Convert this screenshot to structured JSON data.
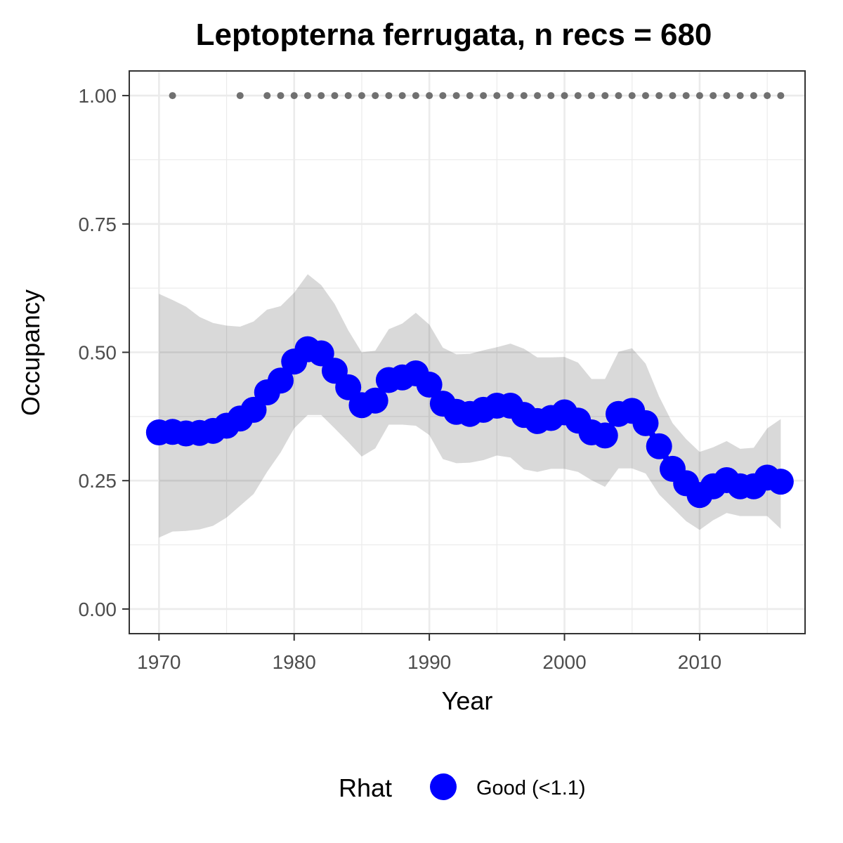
{
  "chart_data": {
    "type": "line",
    "title": "Leptopterna ferrugata, n recs = 680",
    "xlabel": "Year",
    "ylabel": "Occupancy",
    "xlim": [
      1967.8,
      2017.8
    ],
    "ylim": [
      -0.048,
      1.048
    ],
    "x_ticks": [
      1970,
      1980,
      1990,
      2000,
      2010
    ],
    "x_tick_labels": [
      "1970",
      "1980",
      "1990",
      "2000",
      "2010"
    ],
    "y_ticks": [
      0,
      0.25,
      0.5,
      0.75,
      1.0
    ],
    "y_tick_labels": [
      "0.00",
      "0.25",
      "0.50",
      "0.75",
      "1.00"
    ],
    "x_minor_ticks": [
      1975,
      1985,
      1995,
      2005,
      2015
    ],
    "y_minor_ticks": [
      0.125,
      0.375,
      0.625,
      0.875
    ],
    "grid": true,
    "legend_position": "bottom",
    "series": [
      {
        "name": "Good (<1.1)",
        "color": "#0000ff",
        "x": [
          1970,
          1971,
          1972,
          1973,
          1974,
          1975,
          1976,
          1977,
          1978,
          1979,
          1980,
          1981,
          1982,
          1983,
          1984,
          1985,
          1986,
          1987,
          1988,
          1989,
          1990,
          1991,
          1992,
          1993,
          1994,
          1995,
          1996,
          1997,
          1998,
          1999,
          2000,
          2001,
          2002,
          2003,
          2004,
          2005,
          2006,
          2007,
          2008,
          2009,
          2010,
          2011,
          2012,
          2013,
          2014,
          2015,
          2016
        ],
        "values": [
          0.344,
          0.345,
          0.342,
          0.343,
          0.347,
          0.357,
          0.371,
          0.388,
          0.422,
          0.445,
          0.482,
          0.506,
          0.498,
          0.464,
          0.432,
          0.397,
          0.406,
          0.446,
          0.451,
          0.459,
          0.437,
          0.4,
          0.384,
          0.38,
          0.388,
          0.396,
          0.396,
          0.378,
          0.366,
          0.372,
          0.383,
          0.367,
          0.344,
          0.338,
          0.38,
          0.386,
          0.362,
          0.317,
          0.273,
          0.245,
          0.222,
          0.239,
          0.251,
          0.239,
          0.239,
          0.256,
          0.248
        ]
      }
    ],
    "ribbon": {
      "color": "#000000",
      "opacity": 0.15,
      "x": [
        1970,
        1971,
        1972,
        1973,
        1974,
        1975,
        1976,
        1977,
        1978,
        1979,
        1980,
        1981,
        1982,
        1983,
        1984,
        1985,
        1986,
        1987,
        1988,
        1989,
        1990,
        1991,
        1992,
        1993,
        1994,
        1995,
        1996,
        1997,
        1998,
        1999,
        2000,
        2001,
        2002,
        2003,
        2004,
        2005,
        2006,
        2007,
        2008,
        2009,
        2010,
        2011,
        2012,
        2013,
        2014,
        2015,
        2016
      ],
      "lower": [
        0.139,
        0.151,
        0.152,
        0.155,
        0.162,
        0.178,
        0.201,
        0.224,
        0.267,
        0.305,
        0.352,
        0.378,
        0.378,
        0.352,
        0.325,
        0.297,
        0.313,
        0.359,
        0.359,
        0.357,
        0.339,
        0.292,
        0.284,
        0.285,
        0.29,
        0.299,
        0.295,
        0.272,
        0.267,
        0.273,
        0.273,
        0.267,
        0.251,
        0.238,
        0.274,
        0.274,
        0.264,
        0.223,
        0.197,
        0.171,
        0.154,
        0.173,
        0.187,
        0.181,
        0.181,
        0.181,
        0.156
      ],
      "upper": [
        0.614,
        0.602,
        0.589,
        0.569,
        0.557,
        0.552,
        0.55,
        0.56,
        0.583,
        0.59,
        0.616,
        0.652,
        0.631,
        0.594,
        0.543,
        0.5,
        0.503,
        0.545,
        0.556,
        0.577,
        0.554,
        0.509,
        0.496,
        0.497,
        0.504,
        0.51,
        0.517,
        0.507,
        0.49,
        0.49,
        0.491,
        0.48,
        0.448,
        0.448,
        0.501,
        0.508,
        0.478,
        0.414,
        0.362,
        0.331,
        0.306,
        0.315,
        0.327,
        0.312,
        0.314,
        0.352,
        0.37
      ]
    },
    "record_years": {
      "color": "#707070",
      "y": 1.0,
      "x": [
        1971,
        1976,
        1978,
        1979,
        1980,
        1981,
        1982,
        1983,
        1984,
        1985,
        1986,
        1987,
        1988,
        1989,
        1990,
        1991,
        1992,
        1993,
        1994,
        1995,
        1996,
        1997,
        1998,
        1999,
        2000,
        2001,
        2002,
        2003,
        2004,
        2005,
        2006,
        2007,
        2008,
        2009,
        2010,
        2011,
        2012,
        2013,
        2014,
        2015,
        2016
      ]
    }
  },
  "legend": {
    "title": "Rhat",
    "label": "Good (<1.1)",
    "color": "#0000ff"
  }
}
